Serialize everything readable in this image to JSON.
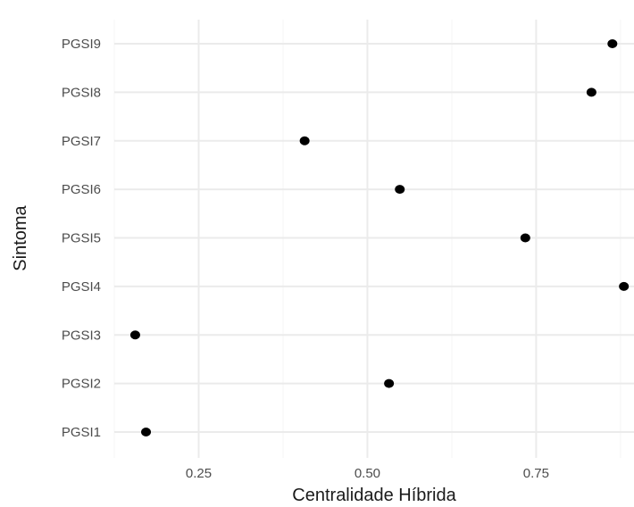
{
  "chart_data": {
    "type": "scatter",
    "title": "",
    "xlabel": "Centralidade Híbrida",
    "ylabel": "Sintoma",
    "xlim": [
      0.125,
      0.895
    ],
    "x_ticks": [
      0.25,
      0.5,
      0.75
    ],
    "x_tick_labels": [
      "0.25",
      "0.50",
      "0.75"
    ],
    "categories": [
      "PGSI1",
      "PGSI2",
      "PGSI3",
      "PGSI4",
      "PGSI5",
      "PGSI6",
      "PGSI7",
      "PGSI8",
      "PGSI9"
    ],
    "values": [
      0.172,
      0.532,
      0.156,
      0.88,
      0.734,
      0.548,
      0.407,
      0.832,
      0.863
    ],
    "grid": true,
    "point_color": "#000000",
    "grid_color": "#ebebeb"
  }
}
